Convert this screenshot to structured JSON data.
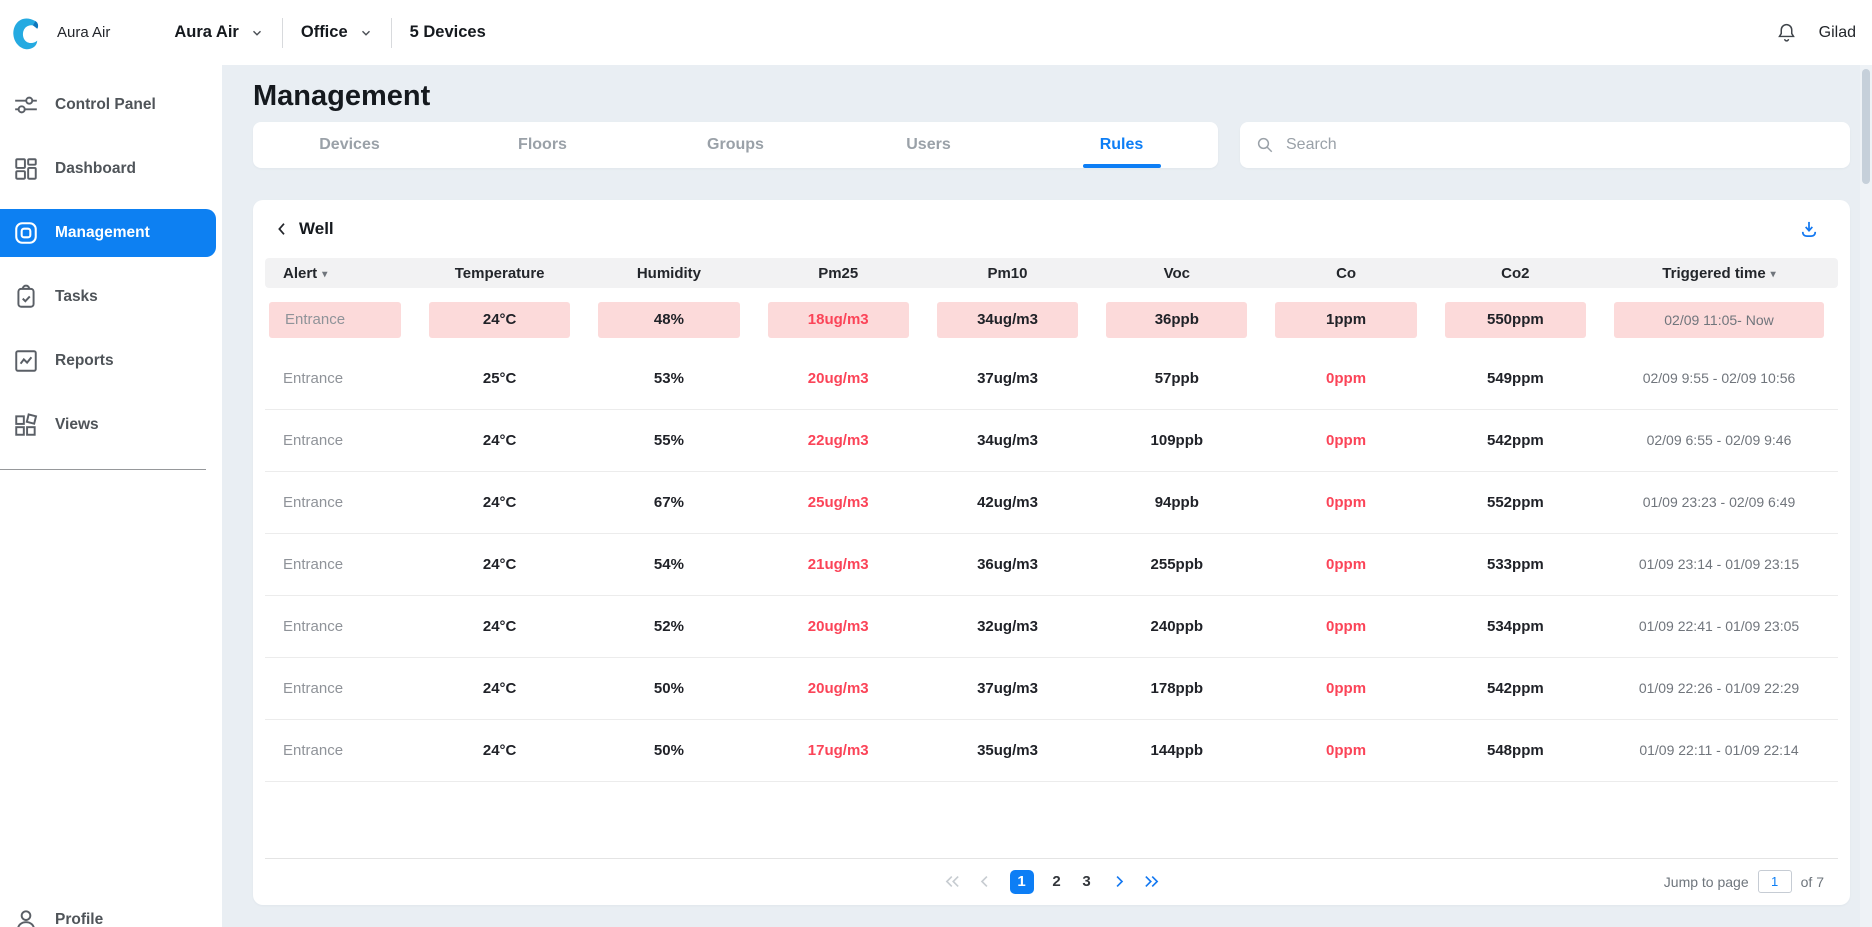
{
  "topbar": {
    "brand": "Aura Air",
    "org_selector": "Aura Air",
    "location_selector": "Office",
    "devices_count": "5 Devices",
    "user": "Gilad"
  },
  "sidebar": {
    "items": [
      {
        "label": "Control Panel",
        "icon": "sliders-icon",
        "active": false
      },
      {
        "label": "Dashboard",
        "icon": "dashboard-grid-icon",
        "active": false
      },
      {
        "label": "Management",
        "icon": "rounded-square-icon",
        "active": true
      },
      {
        "label": "Tasks",
        "icon": "clipboard-check-icon",
        "active": false
      },
      {
        "label": "Reports",
        "icon": "chart-line-icon",
        "active": false
      },
      {
        "label": "Views",
        "icon": "tiles-icon",
        "active": false
      }
    ],
    "profile_label": "Profile"
  },
  "page": {
    "title": "Management",
    "tabs": [
      "Devices",
      "Floors",
      "Groups",
      "Users",
      "Rules"
    ],
    "active_tab": "Rules",
    "search_placeholder": "Search"
  },
  "rules_panel": {
    "back_label": "Well",
    "columns": [
      {
        "key": "alert",
        "label": "Alert",
        "sortable": true
      },
      {
        "key": "temperature",
        "label": "Temperature",
        "sortable": false
      },
      {
        "key": "humidity",
        "label": "Humidity",
        "sortable": false
      },
      {
        "key": "pm25",
        "label": "Pm25",
        "sortable": false
      },
      {
        "key": "pm10",
        "label": "Pm10",
        "sortable": false
      },
      {
        "key": "voc",
        "label": "Voc",
        "sortable": false
      },
      {
        "key": "co",
        "label": "Co",
        "sortable": false
      },
      {
        "key": "co2",
        "label": "Co2",
        "sortable": false
      },
      {
        "key": "triggered",
        "label": "Triggered time",
        "sortable": true
      }
    ],
    "rows": [
      {
        "active": true,
        "alert": "Entrance",
        "temperature": "24°C",
        "humidity": "48%",
        "pm25": "18ug/m3",
        "pm10": "34ug/m3",
        "voc": "36ppb",
        "co": "1ppm",
        "co2": "550ppm",
        "triggered": "02/09 11:05- Now"
      },
      {
        "active": false,
        "alert": "Entrance",
        "temperature": "25°C",
        "humidity": "53%",
        "pm25": "20ug/m3",
        "pm10": "37ug/m3",
        "voc": "57ppb",
        "co": "0ppm",
        "co2": "549ppm",
        "triggered": "02/09 9:55 - 02/09 10:56"
      },
      {
        "active": false,
        "alert": "Entrance",
        "temperature": "24°C",
        "humidity": "55%",
        "pm25": "22ug/m3",
        "pm10": "34ug/m3",
        "voc": "109ppb",
        "co": "0ppm",
        "co2": "542ppm",
        "triggered": "02/09 6:55 - 02/09 9:46"
      },
      {
        "active": false,
        "alert": "Entrance",
        "temperature": "24°C",
        "humidity": "67%",
        "pm25": "25ug/m3",
        "pm10": "42ug/m3",
        "voc": "94ppb",
        "co": "0ppm",
        "co2": "552ppm",
        "triggered": "01/09 23:23 - 02/09 6:49"
      },
      {
        "active": false,
        "alert": "Entrance",
        "temperature": "24°C",
        "humidity": "54%",
        "pm25": "21ug/m3",
        "pm10": "36ug/m3",
        "voc": "255ppb",
        "co": "0ppm",
        "co2": "533ppm",
        "triggered": "01/09 23:14 - 01/09 23:15"
      },
      {
        "active": false,
        "alert": "Entrance",
        "temperature": "24°C",
        "humidity": "52%",
        "pm25": "20ug/m3",
        "pm10": "32ug/m3",
        "voc": "240ppb",
        "co": "0ppm",
        "co2": "534ppm",
        "triggered": "01/09 22:41 - 01/09 23:05"
      },
      {
        "active": false,
        "alert": "Entrance",
        "temperature": "24°C",
        "humidity": "50%",
        "pm25": "20ug/m3",
        "pm10": "37ug/m3",
        "voc": "178ppb",
        "co": "0ppm",
        "co2": "542ppm",
        "triggered": "01/09 22:26 - 01/09 22:29"
      },
      {
        "active": false,
        "alert": "Entrance",
        "temperature": "24°C",
        "humidity": "50%",
        "pm25": "17ug/m3",
        "pm10": "35ug/m3",
        "voc": "144ppb",
        "co": "0ppm",
        "co2": "548ppm",
        "triggered": "01/09 22:11 - 01/09 22:14"
      }
    ],
    "pagination": {
      "pages": [
        "1",
        "2",
        "3"
      ],
      "current": "1",
      "jump_label": "Jump to page",
      "jump_value": "1",
      "total_label": "of 7"
    }
  },
  "colors": {
    "accent_blue": "#0d7ef5",
    "logo_blue": "#25aae1",
    "alert_pink_bg": "#fcdada",
    "alert_red_text": "#fb4458",
    "content_bg": "#e9eef3",
    "table_header_bg": "#f2f2f3"
  }
}
